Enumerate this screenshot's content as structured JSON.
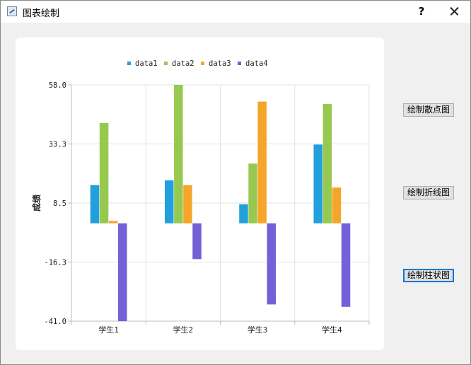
{
  "window": {
    "title": "图表绘制",
    "help_label": "?"
  },
  "buttons": {
    "scatter": "绘制散点图",
    "line": "绘制折线图",
    "bar": "绘制柱状图"
  },
  "colors": {
    "data1": "#23a0dc",
    "data2": "#97c850",
    "data3": "#f5a52a",
    "data4": "#7361d8"
  },
  "chart_data": {
    "type": "bar",
    "title": "",
    "xlabel": "",
    "ylabel": "成绩",
    "ylim": [
      -41.0,
      58.0
    ],
    "yticks": [
      "58.0",
      "33.3",
      "8.5",
      "-16.3",
      "-41.0"
    ],
    "grid": true,
    "legend": "top",
    "categories": [
      "学生1",
      "学生2",
      "学生3",
      "学生4"
    ],
    "series": [
      {
        "name": "data1",
        "values": [
          16,
          18,
          8,
          33
        ]
      },
      {
        "name": "data2",
        "values": [
          42,
          58,
          25,
          50
        ]
      },
      {
        "name": "data3",
        "values": [
          1,
          16,
          51,
          15
        ]
      },
      {
        "name": "data4",
        "values": [
          -41,
          -15,
          -34,
          -35
        ]
      }
    ]
  }
}
